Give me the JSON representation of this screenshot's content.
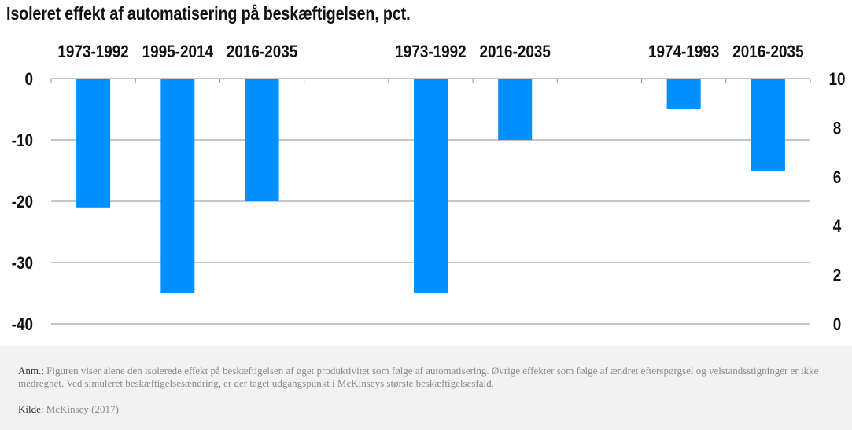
{
  "title": "Isoleret effekt af automatisering på beskæftigelsen, pct.",
  "chart_data": {
    "type": "bar",
    "title": "Isoleret effekt af automatisering på beskæftigelsen, pct.",
    "categories": [
      "1973-1992",
      "1995-2014",
      "2016-2035",
      "",
      "1973-1992",
      "2016-2035",
      "",
      "1974-1993",
      "2016-2035"
    ],
    "values": [
      -21,
      -35,
      -20,
      null,
      -35,
      -10,
      null,
      -5,
      -15
    ],
    "ylim": [
      -40,
      0
    ],
    "yticks": [
      "0",
      "-10",
      "-20",
      "-30",
      "-40"
    ],
    "y2lim": [
      0,
      10
    ],
    "y2ticks": [
      "10",
      "8",
      "6",
      "4",
      "2",
      "0"
    ],
    "grid": true,
    "bar_color": "#0090ff"
  },
  "note": {
    "anm_label": "Anm.:",
    "anm_text": "Figuren viser alene den isolerede effekt på beskæftigelsen af øget produktivitet som følge af automatisering. Øvrige effekter som følge af ændret efterspørgsel og velstandsstigninger er ikke medregnet.  Ved simuleret beskæftigelsesændring, er der taget udgangspunkt i McKinseys største beskæftigelsesfald.",
    "kilde_label": "Kilde:",
    "kilde_text": "McKinsey (2017)."
  }
}
